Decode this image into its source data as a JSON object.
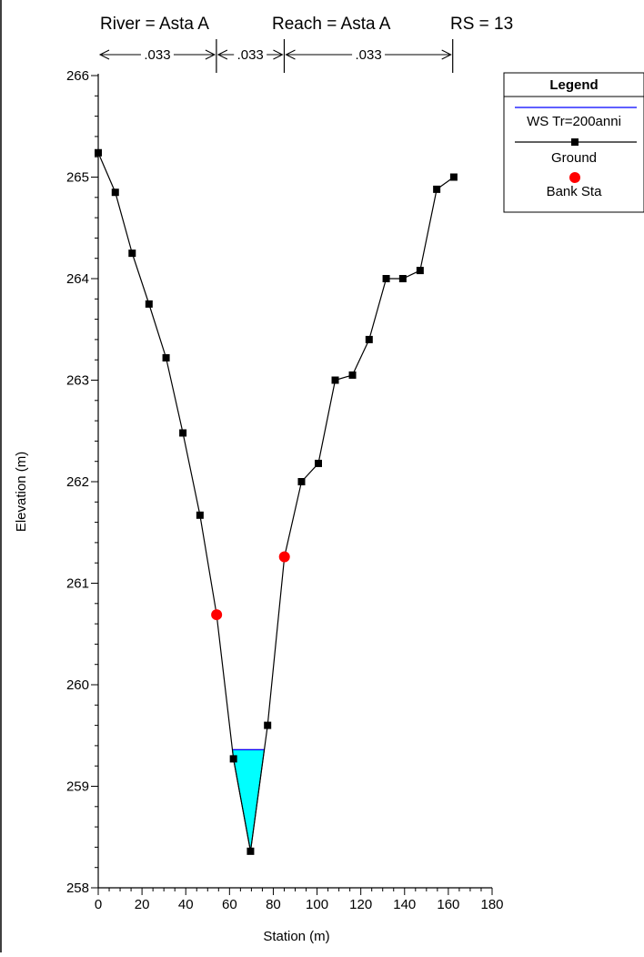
{
  "header": {
    "river": "River = Asta A",
    "reach": "Reach = Asta A",
    "rs": "RS = 13"
  },
  "chart_data": {
    "type": "line",
    "xlabel": "Station (m)",
    "ylabel": "Elevation (m)",
    "xlim": [
      0,
      180
    ],
    "ylim": [
      258,
      266
    ],
    "x_ticks": [
      0,
      20,
      40,
      60,
      80,
      100,
      120,
      140,
      160,
      180
    ],
    "y_ticks": [
      258,
      259,
      260,
      261,
      262,
      263,
      264,
      265,
      266
    ],
    "manning": [
      {
        "label": ".033",
        "from": 0,
        "to": 54
      },
      {
        "label": ".033",
        "from": 54,
        "to": 85
      },
      {
        "label": ".033",
        "from": 85,
        "to": 162
      }
    ],
    "bank_lines": [
      54,
      85
    ],
    "series": [
      {
        "name": "Ground",
        "color": "#000000",
        "x": [
          0,
          7.8,
          15.5,
          23.2,
          31,
          38.7,
          46.5,
          54.1,
          61.8,
          69.6,
          77.4,
          85.1,
          92.9,
          100.6,
          108.3,
          116.2,
          123.8,
          131.6,
          139.2,
          147.1,
          154.7,
          162.5
        ],
        "y": [
          265.24,
          264.85,
          264.25,
          263.75,
          263.22,
          262.48,
          261.67,
          260.69,
          259.27,
          258.36,
          259.6,
          261.26,
          262.0,
          262.18,
          263.0,
          263.05,
          263.4,
          264.0,
          264.0,
          264.08,
          264.88,
          265.0
        ]
      },
      {
        "name": "Bank Sta",
        "color": "#ff0000",
        "x": [
          54.1,
          85.1
        ],
        "y": [
          260.69,
          261.26
        ]
      },
      {
        "name": "WS Tr=200anni",
        "color": "#0000ff",
        "fill": "#00ffff",
        "elevation": 259.36
      }
    ],
    "legend": {
      "title": "Legend",
      "position": "top-right",
      "entries": [
        "WS Tr=200anni",
        "Ground",
        "Bank Sta"
      ]
    }
  }
}
